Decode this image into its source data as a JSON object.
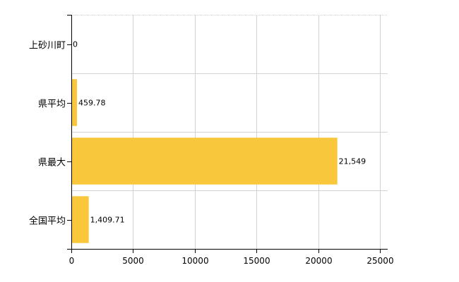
{
  "chart_data": {
    "type": "bar",
    "orientation": "horizontal",
    "categories": [
      "上砂川町",
      "県平均",
      "県最大",
      "全国平均"
    ],
    "values": [
      0,
      459.78,
      21549,
      1409.71
    ],
    "data_labels": [
      "0",
      "459.78",
      "21,549",
      "1,409.71"
    ],
    "x_ticks": [
      "0",
      "5000",
      "10000",
      "15000",
      "20000",
      "25000"
    ],
    "xlim": [
      0,
      25000
    ],
    "title": "",
    "xlabel": "",
    "ylabel": "",
    "grid": true,
    "bar_color": "#F9C73B"
  }
}
